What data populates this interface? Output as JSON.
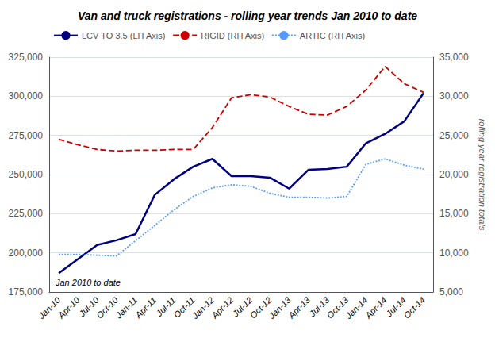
{
  "chart_data": {
    "type": "line",
    "title": "Van and truck registrations - rolling year trends Jan 2010 to date",
    "categories": [
      "Jan-10",
      "Apr-10",
      "Jul-10",
      "Oct-10",
      "Jan-11",
      "Apr-11",
      "Jul-11",
      "Oct-11",
      "Jan-12",
      "Apr-12",
      "Jul-12",
      "Oct-12",
      "Jan-13",
      "Apr-13",
      "Jul-13",
      "Oct-13",
      "Jan-14",
      "Apr-14",
      "Jul-14",
      "Oct-14"
    ],
    "series": [
      {
        "name": "LCV TO 3.5 (LH Axis)",
        "color": "#000080",
        "line_style": "solid",
        "axis": "y",
        "values": [
          187000,
          196000,
          205000,
          208000,
          212000,
          237000,
          247000,
          255000,
          260000,
          249000,
          249000,
          248000,
          241000,
          253000,
          253500,
          255000,
          270000,
          276000,
          284000,
          302000
        ]
      },
      {
        "name": "RIGID (RH Axis)",
        "color": "#CC0000",
        "line_style": "dashed",
        "axis": "y2",
        "values": [
          24500,
          23800,
          23200,
          23000,
          23100,
          23100,
          23200,
          23200,
          26000,
          29800,
          30200,
          29900,
          28700,
          27700,
          27600,
          28700,
          30800,
          33800,
          31600,
          30500
        ]
      },
      {
        "name": "ARTIC (RH Axis)",
        "color": "#5599FF",
        "line_style": "dotted",
        "axis": "y2",
        "values": [
          9800,
          9800,
          9700,
          9600,
          null,
          13500,
          15500,
          17200,
          18300,
          18700,
          18500,
          17600,
          17100,
          17100,
          17000,
          17200,
          21300,
          22000,
          21200,
          20700
        ]
      }
    ],
    "ylim": [
      175000,
      325000
    ],
    "yticks": [
      {
        "value": 175000,
        "label": "175,000"
      },
      {
        "value": 200000,
        "label": "200,000"
      },
      {
        "value": 225000,
        "label": "225,000"
      },
      {
        "value": 250000,
        "label": "250,000"
      },
      {
        "value": 275000,
        "label": "275,000"
      },
      {
        "value": 300000,
        "label": "300,000"
      },
      {
        "value": 325000,
        "label": "325,000"
      }
    ],
    "y2lim": [
      5000,
      35000
    ],
    "y2ticks": [
      {
        "value": 5000,
        "label": "5,000"
      },
      {
        "value": 10000,
        "label": "10,000"
      },
      {
        "value": 15000,
        "label": "15,000"
      },
      {
        "value": 20000,
        "label": "20,000"
      },
      {
        "value": 25000,
        "label": "25,000"
      },
      {
        "value": 30000,
        "label": "30,000"
      },
      {
        "value": 35000,
        "label": "35,000"
      }
    ],
    "y2label": "rolling year registration totals",
    "annotation": "Jan 2010 to date",
    "grid": true,
    "legend": "upper left"
  }
}
